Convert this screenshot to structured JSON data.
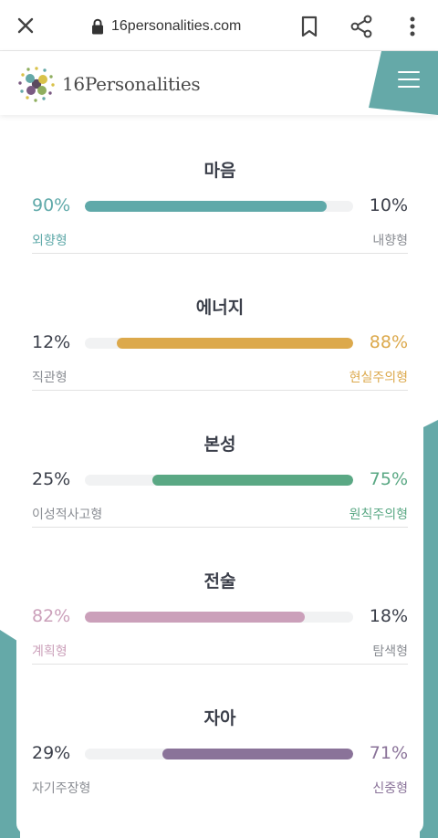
{
  "browser": {
    "url": "16personalities.com",
    "icons": [
      "close-icon",
      "lock-icon",
      "bookmark-icon",
      "share-icon",
      "more-vert-icon"
    ]
  },
  "header": {
    "logo_text": "16Personalities",
    "menu_icon": "hamburger-menu-icon",
    "accent_color": "#65a9a8"
  },
  "traits": [
    {
      "title": "마음",
      "left_pct": "90%",
      "right_pct": "10%",
      "left_label": "외향형",
      "right_label": "내향형",
      "dominant": "left",
      "fill_fraction": 0.9,
      "color": "#5fa9a9"
    },
    {
      "title": "에너지",
      "left_pct": "12%",
      "right_pct": "88%",
      "left_label": "직관형",
      "right_label": "현실주의형",
      "dominant": "right",
      "fill_fraction": 0.88,
      "color": "#dca94c"
    },
    {
      "title": "본성",
      "left_pct": "25%",
      "right_pct": "75%",
      "left_label": "이성적사고형",
      "right_label": "원칙주의형",
      "dominant": "right",
      "fill_fraction": 0.75,
      "color": "#5aa884"
    },
    {
      "title": "전술",
      "left_pct": "82%",
      "right_pct": "18%",
      "left_label": "계획형",
      "right_label": "탐색형",
      "dominant": "left",
      "fill_fraction": 0.82,
      "color": "#cba0ba"
    },
    {
      "title": "자아",
      "left_pct": "29%",
      "right_pct": "71%",
      "left_label": "자기주장형",
      "right_label": "신중형",
      "dominant": "right",
      "fill_fraction": 0.71,
      "color": "#8a7399"
    }
  ]
}
